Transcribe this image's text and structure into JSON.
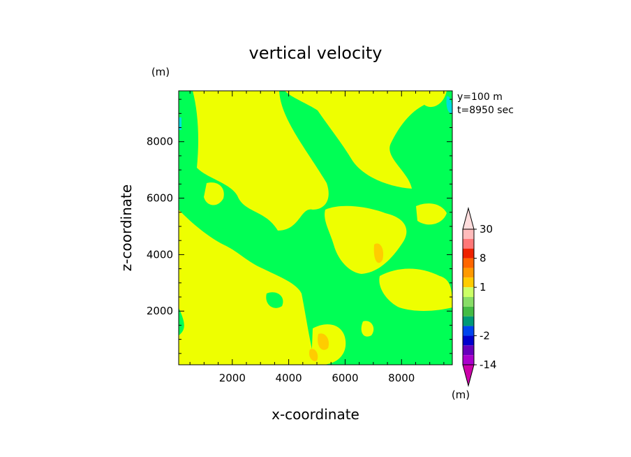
{
  "chart_data": {
    "type": "heatmap",
    "title": "vertical velocity",
    "xlabel": "x-coordinate",
    "ylabel": "z-coordinate",
    "x_unit": "(m)",
    "y_unit": "(m)",
    "xlim": [
      100,
      9800
    ],
    "ylim": [
      100,
      9800
    ],
    "x_ticks": [
      2000,
      4000,
      6000,
      8000
    ],
    "y_ticks": [
      2000,
      4000,
      6000,
      8000
    ],
    "annotation": [
      "y=100 m",
      "t=8950 sec"
    ],
    "colorbar": {
      "unit": "(m)",
      "tick_labels": [
        "30",
        "8",
        "1",
        "-2",
        "-14"
      ],
      "tick_values": [
        30,
        8,
        1,
        -2,
        -14
      ],
      "levels": [
        -20,
        -14,
        -8,
        -4,
        -2,
        -1,
        -0.5,
        0,
        0.5,
        1,
        2,
        4,
        8,
        14,
        20,
        30
      ],
      "colors": [
        "#cc00aa",
        "#aa00cc",
        "#6600bb",
        "#0000cc",
        "#0044ee",
        "#009977",
        "#44bb44",
        "#88dd66",
        "#ccff66",
        "#ffcc00",
        "#ff9900",
        "#ff6600",
        "#ee2200",
        "#ff7777",
        "#ffbbbb",
        "#ffdddd"
      ],
      "field_colors": {
        "neutral": "#00ff55",
        "weak_updraft": "#eeff00",
        "moderate_updraft": "#ffcc00",
        "weak_downdraft": "#00dddd"
      }
    }
  }
}
